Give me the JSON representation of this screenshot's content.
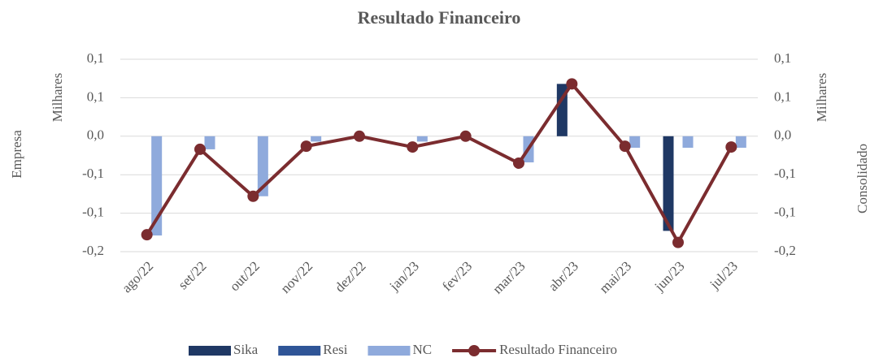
{
  "chart_data": {
    "type": "bar_line",
    "title": "Resultado Financeiro",
    "y_label": "Empresa",
    "y_unit": "Milhares",
    "y2_label": "Consolidado",
    "y2_unit": "Milhares",
    "categories": [
      "ago/22",
      "set/22",
      "out/22",
      "nov/22",
      "dez/22",
      "jan/23",
      "fev/23",
      "mar/23",
      "abr/23",
      "mai/23",
      "jun/23",
      "jul/23"
    ],
    "ylim": [
      -0.15,
      0.1
    ],
    "yticks": [
      {
        "value": 0.1,
        "label": "0,1"
      },
      {
        "value": 0.05,
        "label": "0,1"
      },
      {
        "value": 0,
        "label": "0,0"
      },
      {
        "value": -0.05,
        "label": "-0,1"
      },
      {
        "value": -0.1,
        "label": "-0,1"
      },
      {
        "value": -0.15,
        "label": "-0,2"
      }
    ],
    "y2lim": [
      -0.15,
      0.1
    ],
    "y2ticks": [
      {
        "value": 0.1,
        "label": "0,1"
      },
      {
        "value": 0.05,
        "label": "0,1"
      },
      {
        "value": 0,
        "label": "0,0"
      },
      {
        "value": -0.05,
        "label": "-0,1"
      },
      {
        "value": -0.1,
        "label": "-0,1"
      },
      {
        "value": -0.15,
        "label": "-0,2"
      }
    ],
    "grid": true,
    "legend": "bottom",
    "series": [
      {
        "name": "Sika",
        "color": "#1f3864",
        "kind": "bar",
        "values": [
          0,
          0,
          0,
          0,
          0,
          0,
          0,
          0,
          0.068,
          0,
          -0.123,
          0
        ]
      },
      {
        "name": "Resi",
        "color": "#2f5597",
        "kind": "bar",
        "values": [
          0,
          0,
          0,
          0,
          0,
          0,
          0,
          0,
          0,
          0,
          0,
          0
        ]
      },
      {
        "name": "NC",
        "color": "#8faadc",
        "kind": "bar",
        "values": [
          -0.129,
          -0.017,
          -0.078,
          -0.007,
          0,
          -0.007,
          0,
          -0.034,
          0,
          -0.015,
          -0.015,
          -0.015
        ]
      },
      {
        "name": "Resultado Financeiro",
        "color": "#7b2c2f",
        "kind": "line",
        "axis": "y2",
        "values": [
          -0.128,
          -0.017,
          -0.078,
          -0.013,
          0,
          -0.014,
          0,
          -0.035,
          0.068,
          -0.013,
          -0.138,
          -0.014
        ]
      }
    ]
  }
}
